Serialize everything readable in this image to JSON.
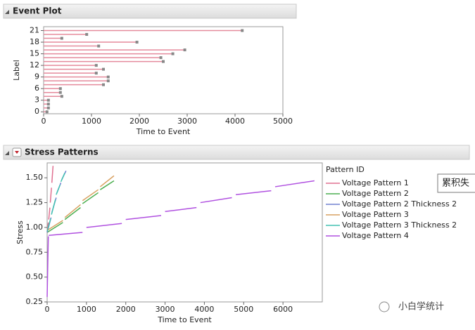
{
  "chart_data": [
    {
      "type": "lollipop",
      "title": "Event Plot",
      "x_label": "Time to Event",
      "y_label": "Label",
      "labels": [
        21,
        20,
        19,
        18,
        17,
        16,
        15,
        14,
        13,
        12,
        11,
        10,
        9,
        8,
        7,
        6,
        5,
        4,
        3,
        2,
        1,
        0
      ],
      "values": [
        4150,
        900,
        380,
        1950,
        1150,
        2950,
        2700,
        2450,
        2500,
        1100,
        1250,
        1100,
        1350,
        1350,
        1250,
        350,
        350,
        380,
        100,
        100,
        100,
        70
      ],
      "color": "#e58a9c",
      "marker_color": "#888888",
      "xlim": [
        0,
        5000
      ],
      "xticks": [
        0,
        1000,
        2000,
        3000,
        4000,
        5000
      ],
      "ylim": [
        -0.5,
        22
      ],
      "yticks": [
        0,
        3,
        6,
        9,
        12,
        15,
        18,
        21
      ]
    },
    {
      "type": "line",
      "title": "Stress Patterns",
      "x_label": "Time to Event",
      "y_label": "Stress",
      "legend_title": "Pattern ID",
      "series": [
        {
          "name": "Voltage Pattern 1",
          "color": "#e07090",
          "x": [
            0,
            30,
            null,
            40,
            70,
            null,
            80,
            110,
            null,
            120,
            150
          ],
          "values": [
            0.95,
            1.05,
            null,
            1.08,
            1.2,
            null,
            1.25,
            1.4,
            null,
            1.45,
            1.62
          ]
        },
        {
          "name": "Voltage Pattern 2",
          "color": "#4caf50",
          "x": [
            0,
            400,
            null,
            450,
            850,
            null,
            900,
            1300,
            null,
            1350,
            1700
          ],
          "values": [
            0.95,
            1.05,
            null,
            1.08,
            1.2,
            null,
            1.24,
            1.35,
            null,
            1.38,
            1.47
          ]
        },
        {
          "name": "Voltage Pattern 2 Thickness 2",
          "color": "#7080d0",
          "x": [
            0,
            100,
            null,
            120,
            230,
            null,
            250,
            350,
            null,
            370,
            480
          ],
          "values": [
            0.95,
            1.1,
            null,
            1.15,
            1.3,
            null,
            1.35,
            1.45,
            null,
            1.48,
            1.57
          ]
        },
        {
          "name": "Voltage Pattern 3",
          "color": "#d8a060",
          "x": [
            0,
            400,
            null,
            450,
            850,
            null,
            900,
            1300,
            null,
            1350,
            1700
          ],
          "values": [
            0.97,
            1.07,
            null,
            1.1,
            1.23,
            null,
            1.27,
            1.38,
            null,
            1.41,
            1.52
          ]
        },
        {
          "name": "Voltage Pattern 3 Thickness 2",
          "color": "#40c0b0",
          "x": [
            0,
            90,
            null,
            110,
            210,
            null,
            230,
            330,
            null,
            350,
            450
          ],
          "values": [
            0.96,
            1.09,
            null,
            1.13,
            1.28,
            null,
            1.33,
            1.43,
            null,
            1.46,
            1.55
          ]
        },
        {
          "name": "Voltage Pattern 4",
          "color": "#b050e0",
          "x": [
            0,
            30,
            null,
            40,
            900,
            null,
            1000,
            1900,
            null,
            2000,
            2900,
            null,
            3000,
            3800,
            null,
            3900,
            4700,
            null,
            4800,
            5700,
            null,
            5800,
            6800
          ],
          "values": [
            0.3,
            0.91,
            null,
            0.92,
            0.95,
            null,
            1.0,
            1.04,
            null,
            1.08,
            1.12,
            null,
            1.16,
            1.2,
            null,
            1.25,
            1.3,
            null,
            1.33,
            1.37,
            null,
            1.41,
            1.47
          ]
        }
      ],
      "xlim": [
        0,
        7000
      ],
      "xticks": [
        0,
        1000,
        2000,
        3000,
        4000,
        5000,
        6000
      ],
      "ylim": [
        0.25,
        1.65
      ],
      "yticks": [
        {
          "value": 0.25,
          "label": "0.25"
        },
        {
          "value": 0.5,
          "label": "0.50"
        },
        {
          "value": 0.75,
          "label": "0.75"
        },
        {
          "value": 1,
          "label": "1.00"
        },
        {
          "value": 1.25,
          "label": "1.25"
        },
        {
          "value": 1.5,
          "label": "1.50"
        }
      ]
    }
  ],
  "ui": {
    "tooltip": "累积失",
    "watermark": "小白学统计"
  }
}
